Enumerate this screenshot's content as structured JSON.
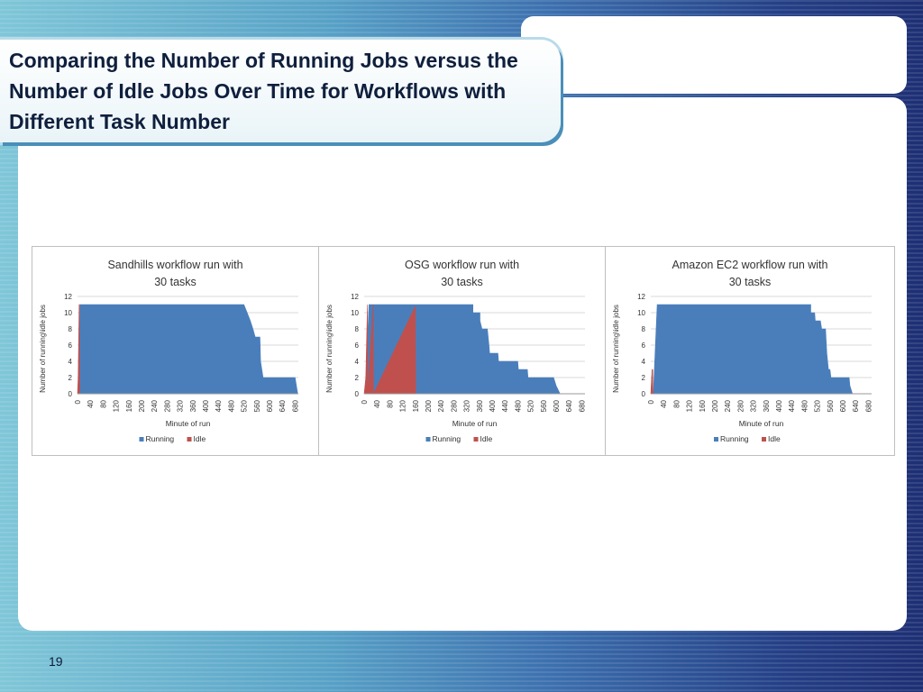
{
  "slide": {
    "title": "Comparing the Number of Running Jobs versus the Number of Idle Jobs Over Time for Workflows with Different Task Number",
    "page_number": "19"
  },
  "chart_data": [
    {
      "type": "area",
      "title": [
        "Sandhills workflow run with",
        "30 tasks"
      ],
      "xlabel": "Minute of run",
      "ylabel": "Number of running\\idle jobs",
      "xlim": [
        0,
        690
      ],
      "ylim": [
        0,
        12
      ],
      "x_ticks": [
        0,
        40,
        80,
        120,
        160,
        200,
        240,
        280,
        320,
        360,
        400,
        440,
        480,
        520,
        560,
        600,
        640,
        680
      ],
      "y_ticks": [
        0,
        2,
        4,
        6,
        8,
        10,
        12
      ],
      "grid": true,
      "legend": "bottom",
      "colors": {
        "Running": "#4a7ebb",
        "Idle": "#c0504d"
      },
      "series": [
        {
          "name": "Running",
          "points": [
            [
              0,
              0
            ],
            [
              2,
              0
            ],
            [
              8,
              11
            ],
            [
              520,
              11
            ],
            [
              530,
              10
            ],
            [
              540,
              9
            ],
            [
              548,
              8
            ],
            [
              555,
              7
            ],
            [
              570,
              7
            ],
            [
              572,
              4
            ],
            [
              580,
              2
            ],
            [
              670,
              2
            ],
            [
              680,
              2
            ],
            [
              688,
              0
            ]
          ]
        },
        {
          "name": "Idle",
          "points": [
            [
              0,
              0
            ],
            [
              2,
              2
            ],
            [
              5,
              11
            ],
            [
              6,
              11
            ],
            [
              7,
              0
            ]
          ]
        }
      ]
    },
    {
      "type": "area",
      "title": [
        "OSG workflow run with",
        "30 tasks"
      ],
      "xlabel": "Minute of run",
      "ylabel": "Number of running\\idle jobs",
      "xlim": [
        0,
        690
      ],
      "ylim": [
        0,
        12
      ],
      "x_ticks": [
        0,
        40,
        80,
        120,
        160,
        200,
        240,
        280,
        320,
        360,
        400,
        440,
        480,
        520,
        560,
        600,
        640,
        680
      ],
      "y_ticks": [
        0,
        2,
        4,
        6,
        8,
        10,
        12
      ],
      "grid": true,
      "legend": "bottom",
      "colors": {
        "Running": "#4a7ebb",
        "Idle": "#c0504d"
      },
      "series": [
        {
          "name": "Running",
          "points": [
            [
              0,
              0
            ],
            [
              4,
              0
            ],
            [
              15,
              11
            ],
            [
              340,
              11
            ],
            [
              340,
              10
            ],
            [
              362,
              10
            ],
            [
              362,
              9
            ],
            [
              368,
              8
            ],
            [
              385,
              8
            ],
            [
              390,
              6
            ],
            [
              392,
              5
            ],
            [
              418,
              5
            ],
            [
              420,
              4
            ],
            [
              480,
              4
            ],
            [
              482,
              3
            ],
            [
              510,
              3
            ],
            [
              512,
              2
            ],
            [
              590,
              2
            ],
            [
              592,
              2
            ],
            [
              600,
              1
            ],
            [
              612,
              0
            ]
          ]
        },
        {
          "name": "Idle",
          "points": [
            [
              0,
              0
            ],
            [
              5,
              2
            ],
            [
              10,
              11
            ],
            [
              11,
              0
            ],
            [
              28,
              11
            ],
            [
              29,
              0
            ],
            [
              160,
              10.8
            ],
            [
              161,
              0
            ]
          ]
        }
      ]
    },
    {
      "type": "area",
      "title": [
        "Amazon EC2 workflow run with",
        "30 tasks"
      ],
      "xlabel": "Minute of run",
      "ylabel": "Number of running\\idle jobs",
      "xlim": [
        0,
        690
      ],
      "ylim": [
        0,
        12
      ],
      "x_ticks": [
        0,
        40,
        80,
        120,
        160,
        200,
        240,
        280,
        320,
        360,
        400,
        440,
        480,
        520,
        560,
        600,
        640,
        680
      ],
      "y_ticks": [
        0,
        2,
        4,
        6,
        8,
        10,
        12
      ],
      "grid": true,
      "legend": "bottom",
      "colors": {
        "Running": "#4a7ebb",
        "Idle": "#c0504d"
      },
      "series": [
        {
          "name": "Running",
          "points": [
            [
              0,
              0
            ],
            [
              8,
              0
            ],
            [
              20,
              11
            ],
            [
              500,
              11
            ],
            [
              500,
              10
            ],
            [
              512,
              10
            ],
            [
              514,
              9
            ],
            [
              530,
              9
            ],
            [
              534,
              8
            ],
            [
              546,
              8
            ],
            [
              550,
              5
            ],
            [
              555,
              3
            ],
            [
              560,
              3
            ],
            [
              563,
              2
            ],
            [
              620,
              2
            ],
            [
              622,
              1
            ],
            [
              630,
              0
            ]
          ]
        },
        {
          "name": "Idle",
          "points": [
            [
              0,
              0
            ],
            [
              4,
              3
            ],
            [
              6,
              3
            ],
            [
              7,
              0
            ]
          ]
        }
      ]
    }
  ]
}
